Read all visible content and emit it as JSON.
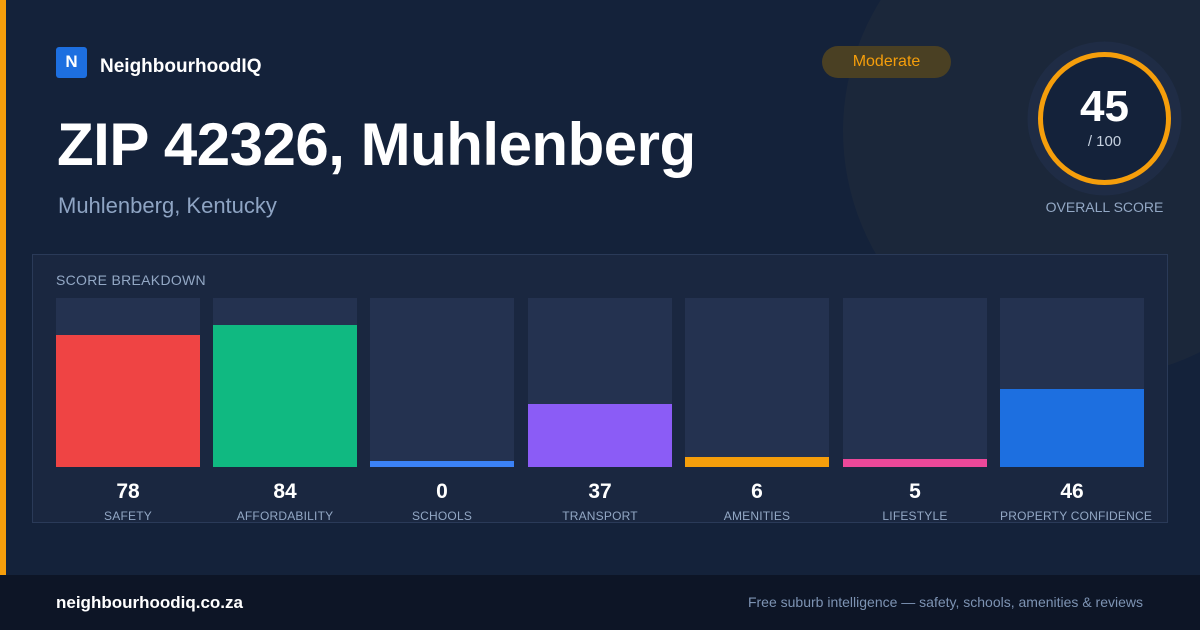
{
  "brand": {
    "logo_letter": "N",
    "name": "NeighbourhoodIQ"
  },
  "rating_badge": "Moderate",
  "title": "ZIP 42326, Muhlenberg",
  "subtitle": "Muhlenberg, Kentucky",
  "overall": {
    "score": "45",
    "out_of": "/ 100",
    "caption": "OVERALL SCORE",
    "fraction": 0.45
  },
  "breakdown": {
    "title": "SCORE BREAKDOWN",
    "items": [
      {
        "label": "SAFETY",
        "value": "78",
        "level": 0.78,
        "color": "#ef4444"
      },
      {
        "label": "AFFORDABILITY",
        "value": "84",
        "level": 0.84,
        "color": "#10b981"
      },
      {
        "label": "SCHOOLS",
        "value": "0",
        "level": 0.035,
        "color": "#3b82f6"
      },
      {
        "label": "TRANSPORT",
        "value": "37",
        "level": 0.37,
        "color": "#8b5cf6"
      },
      {
        "label": "AMENITIES",
        "value": "6",
        "level": 0.06,
        "color": "#f59e0b"
      },
      {
        "label": "LIFESTYLE",
        "value": "5",
        "level": 0.05,
        "color": "#ec4899"
      },
      {
        "label": "PROPERTY CONFIDENCE",
        "value": "46",
        "level": 0.46,
        "color": "#1d6fe0"
      }
    ]
  },
  "footer": {
    "domain": "neighbourhoodiq.co.za",
    "tagline": "Free suburb intelligence — safety, schools, amenities & reviews"
  },
  "colors": {
    "accent": "#f59e0b",
    "background": "#14223a",
    "brand_blue": "#1d6fe0"
  }
}
